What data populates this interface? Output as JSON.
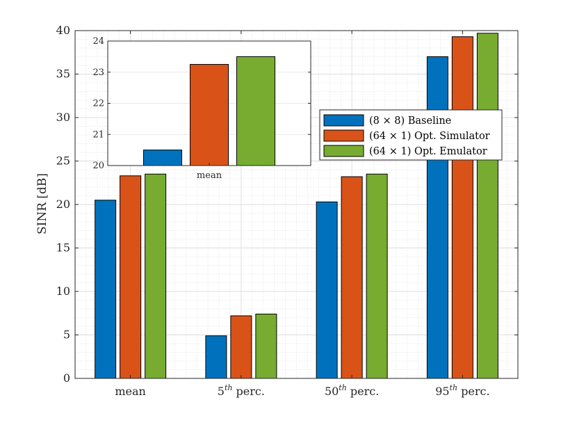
{
  "chart_data": [
    {
      "type": "bar",
      "title": "",
      "xlabel": "",
      "ylabel": "SINR [dB]",
      "ylim": [
        0,
        40
      ],
      "yticks": [
        0,
        5,
        10,
        15,
        20,
        25,
        30,
        35,
        40
      ],
      "categories": [
        {
          "base": "mean",
          "sup": "",
          "rest": ""
        },
        {
          "base": "5",
          "sup": "th",
          "rest": " perc."
        },
        {
          "base": "50",
          "sup": "th",
          "rest": " perc."
        },
        {
          "base": "95",
          "sup": "th",
          "rest": " perc."
        }
      ],
      "series": [
        {
          "name": "(8 × 8) Baseline",
          "color": "#0072BD",
          "values": [
            20.5,
            4.9,
            20.3,
            37.0
          ]
        },
        {
          "name": "(64 × 1) Opt. Simulator",
          "color": "#D95319",
          "values": [
            23.3,
            7.2,
            23.2,
            39.3
          ]
        },
        {
          "name": "(64 × 1) Opt. Emulator",
          "color": "#77AC30",
          "values": [
            23.5,
            7.4,
            23.5,
            39.7
          ]
        }
      ],
      "legend": {
        "position": "center-right"
      },
      "grid": true
    },
    {
      "type": "bar",
      "role": "inset",
      "categories": [
        "mean"
      ],
      "ylim": [
        20,
        24
      ],
      "yticks": [
        20,
        21,
        22,
        23,
        24
      ],
      "series": [
        {
          "name": "(8 × 8) Baseline",
          "values": [
            20.5
          ]
        },
        {
          "name": "(64 × 1) Opt. Simulator",
          "values": [
            23.25
          ]
        },
        {
          "name": "(64 × 1) Opt. Emulator",
          "values": [
            23.5
          ]
        }
      ]
    }
  ]
}
